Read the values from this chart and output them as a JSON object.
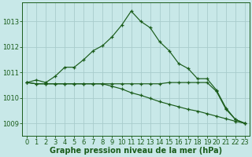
{
  "xlabel": "Graphe pression niveau de la mer (hPa)",
  "x": [
    0,
    1,
    2,
    3,
    4,
    5,
    6,
    7,
    8,
    9,
    10,
    11,
    12,
    13,
    14,
    15,
    16,
    17,
    18,
    19,
    20,
    21,
    22,
    23
  ],
  "line1": [
    1010.6,
    1010.7,
    1010.6,
    1010.85,
    1011.2,
    1011.2,
    1011.5,
    1011.85,
    1012.05,
    1012.4,
    1012.85,
    1013.4,
    1013.0,
    1012.75,
    1012.2,
    1011.85,
    1011.35,
    1011.15,
    1010.75,
    1010.75,
    1010.3,
    1009.6,
    1009.15,
    1009.0
  ],
  "line2": [
    1010.6,
    1010.55,
    1010.55,
    1010.55,
    1010.55,
    1010.55,
    1010.55,
    1010.55,
    1010.55,
    1010.55,
    1010.55,
    1010.55,
    1010.55,
    1010.55,
    1010.55,
    1010.6,
    1010.6,
    1010.6,
    1010.6,
    1010.6,
    1010.25,
    1009.55,
    1009.15,
    1009.0
  ],
  "line3": [
    1010.6,
    1010.55,
    1010.55,
    1010.55,
    1010.55,
    1010.55,
    1010.55,
    1010.55,
    1010.55,
    1010.45,
    1010.35,
    1010.2,
    1010.1,
    1009.98,
    1009.85,
    1009.75,
    1009.65,
    1009.55,
    1009.48,
    1009.38,
    1009.28,
    1009.18,
    1009.08,
    1009.0
  ],
  "line_color": "#1a5c1a",
  "bg_color": "#c8e8e8",
  "grid_color": "#a8cccc",
  "text_color": "#1a5c1a",
  "ylim": [
    1008.5,
    1013.75
  ],
  "yticks": [
    1009,
    1010,
    1011,
    1012,
    1013
  ],
  "xlabel_fontsize": 7.0,
  "tick_fontsize": 6.0
}
